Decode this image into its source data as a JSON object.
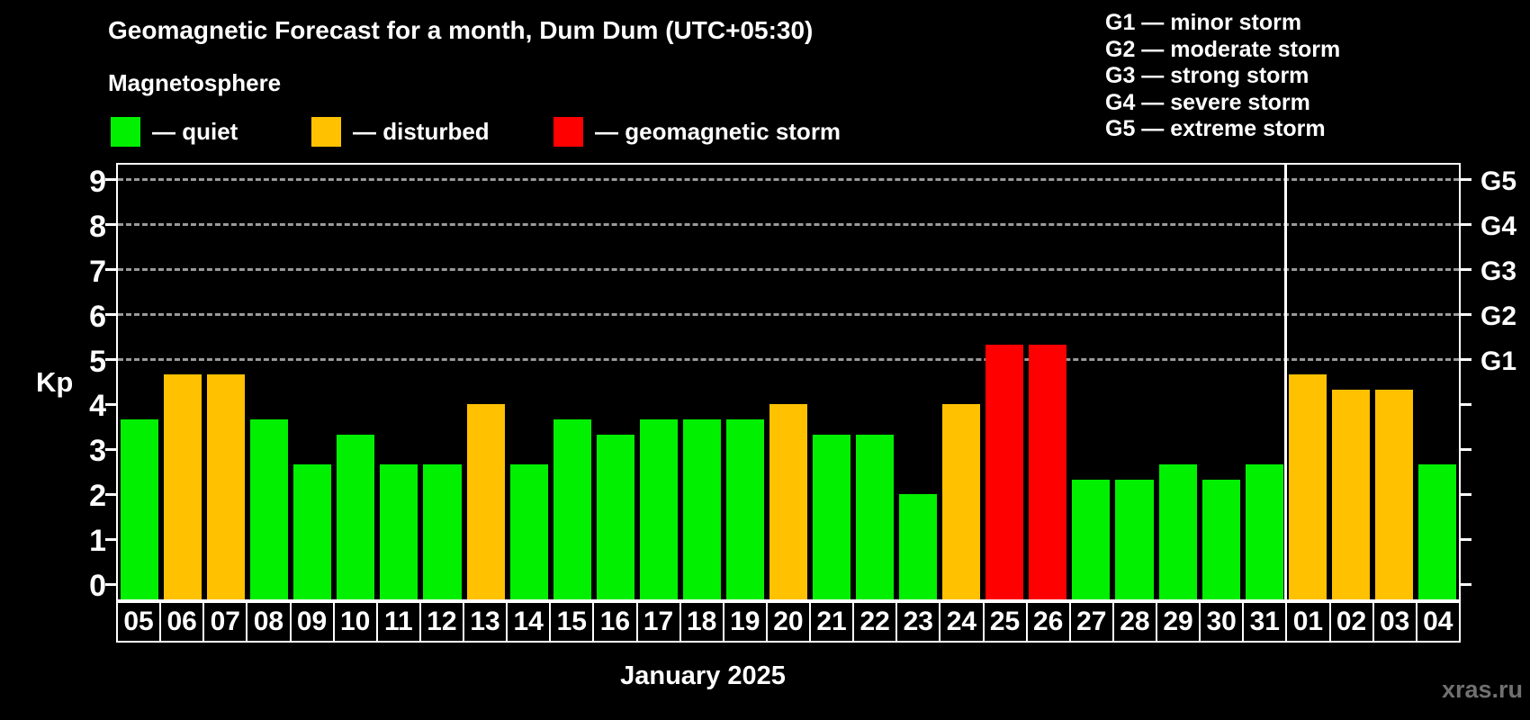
{
  "header": {
    "title": "Geomagnetic Forecast for a month, Dum Dum (UTC+05:30)",
    "subtitle": "Magnetosphere"
  },
  "legend": [
    {
      "name": "quiet",
      "label": "— quiet",
      "color": "#00f000"
    },
    {
      "name": "disturbed",
      "label": "— disturbed",
      "color": "#ffc100"
    },
    {
      "name": "geomagnetic-storm",
      "label": "— geomagnetic storm",
      "color": "#ff0000"
    }
  ],
  "g_legend": [
    "G1 — minor storm",
    "G2 — moderate storm",
    "G3 — strong storm",
    "G4 — severe storm",
    "G5 — extreme storm"
  ],
  "chart_data": {
    "type": "bar",
    "title": "Geomagnetic Forecast for a month, Dum Dum (UTC+05:30)",
    "subtitle": "Magnetosphere",
    "ylabel": "Kp",
    "xlabel": "January 2025",
    "ylim": [
      0,
      9
    ],
    "yticks": [
      0,
      1,
      2,
      3,
      4,
      5,
      6,
      7,
      8,
      9
    ],
    "gridlines_at": [
      5,
      6,
      7,
      8,
      9
    ],
    "grid": "dashed",
    "legend_position": "top",
    "right_axis_labels": [
      {
        "kp": 5,
        "label": "G1"
      },
      {
        "kp": 6,
        "label": "G2"
      },
      {
        "kp": 7,
        "label": "G3"
      },
      {
        "kp": 8,
        "label": "G4"
      },
      {
        "kp": 9,
        "label": "G5"
      }
    ],
    "categories": [
      "05",
      "06",
      "07",
      "08",
      "09",
      "10",
      "11",
      "12",
      "13",
      "14",
      "15",
      "16",
      "17",
      "18",
      "19",
      "20",
      "21",
      "22",
      "23",
      "24",
      "25",
      "26",
      "27",
      "28",
      "29",
      "30",
      "31",
      "01",
      "02",
      "03",
      "04"
    ],
    "values": [
      3.67,
      4.67,
      4.67,
      3.67,
      2.67,
      3.33,
      2.67,
      2.67,
      4.0,
      2.67,
      3.67,
      3.33,
      3.67,
      3.67,
      3.67,
      4.0,
      3.33,
      3.33,
      2.0,
      4.0,
      5.33,
      5.33,
      2.33,
      2.33,
      2.67,
      2.33,
      2.67,
      4.67,
      4.33,
      4.33,
      2.67
    ],
    "status": [
      "quiet",
      "disturbed",
      "disturbed",
      "quiet",
      "quiet",
      "quiet",
      "quiet",
      "quiet",
      "disturbed",
      "quiet",
      "quiet",
      "quiet",
      "quiet",
      "quiet",
      "quiet",
      "disturbed",
      "quiet",
      "quiet",
      "quiet",
      "disturbed",
      "storm",
      "storm",
      "quiet",
      "quiet",
      "quiet",
      "quiet",
      "quiet",
      "disturbed",
      "disturbed",
      "disturbed",
      "quiet"
    ],
    "colors": {
      "quiet": "#00f000",
      "disturbed": "#ffc100",
      "storm": "#ff0000"
    },
    "month_separator_after_index": 26
  },
  "month_label": "January 2025",
  "watermark": "xras.ru"
}
